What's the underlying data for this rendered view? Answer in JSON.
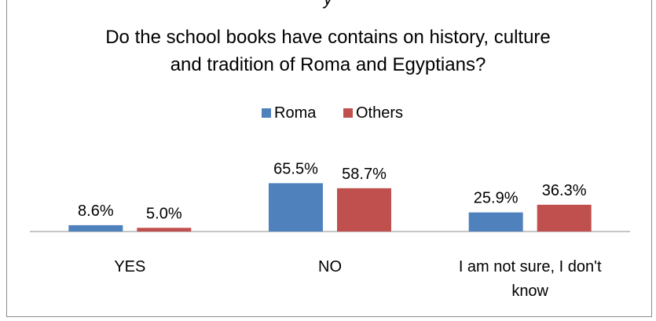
{
  "header_fragment": "y",
  "chart_data": {
    "type": "bar",
    "title": "Do the school books have contains on history, culture and tradition of Roma and Egyptians?",
    "title_lines": [
      "Do the school books have contains on history, culture",
      "and tradition of Roma and Egyptians?"
    ],
    "categories": [
      [
        "YES"
      ],
      [
        "NO"
      ],
      [
        "I am not sure, I don't",
        "know"
      ]
    ],
    "series": [
      {
        "name": "Roma",
        "color": "#4f81bd",
        "values": [
          8.6,
          65.5,
          25.9
        ],
        "labels": [
          "8.6%",
          "65.5%",
          "25.9%"
        ]
      },
      {
        "name": "Others",
        "color": "#c0504d",
        "values": [
          5.0,
          58.7,
          36.3
        ],
        "labels": [
          "5.0%",
          "58.7%",
          "36.3%"
        ]
      }
    ],
    "legend_position": "top",
    "grid": false,
    "ylim": [
      0,
      100
    ]
  }
}
